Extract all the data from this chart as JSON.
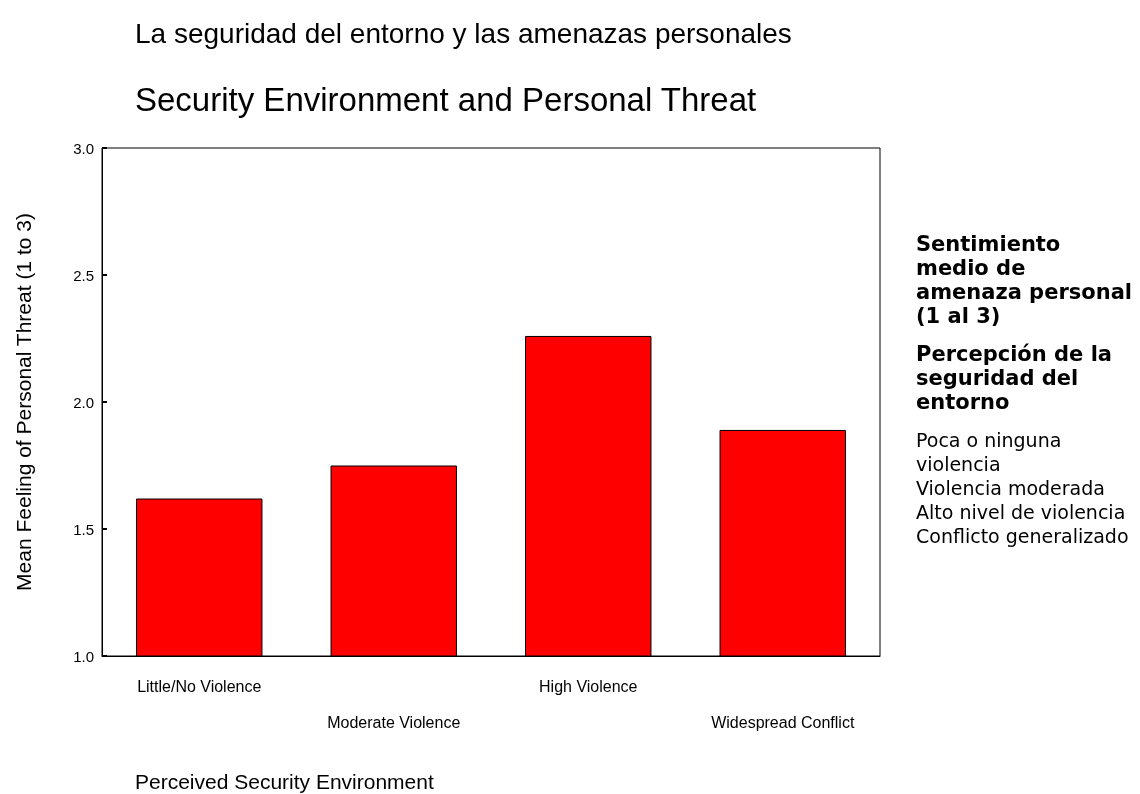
{
  "chart_data": {
    "type": "bar",
    "title": "La seguridad del entorno y las amenazas personales",
    "subtitle": "Security Environment and Personal Threat",
    "xlabel": "Perceived Security Environment",
    "ylabel": "Mean Feeling of Personal Threat (1 to 3)",
    "categories": [
      "Little/No Violence",
      "Moderate Violence",
      "High Violence",
      "Widespread Conflict"
    ],
    "values": [
      1.62,
      1.75,
      2.26,
      1.89
    ],
    "color": "#ff0000",
    "ylim": [
      1,
      3
    ],
    "yticks": [
      {
        "value": 1,
        "label": "1.0"
      },
      {
        "value": 1.5,
        "label": "1.5"
      },
      {
        "value": 2,
        "label": "2.0"
      },
      {
        "value": 2.5,
        "label": "2.5"
      },
      {
        "value": 3,
        "label": "3.0"
      }
    ],
    "grid": false,
    "annotations": [
      "Sentimiento medio de amenaza personal (1 al 3)",
      "Percepción de la seguridad del entorno",
      "Poca o ninguna violencia",
      "Violencia moderada",
      "Alto nivel de violencia",
      "Conflicto generalizado"
    ]
  }
}
